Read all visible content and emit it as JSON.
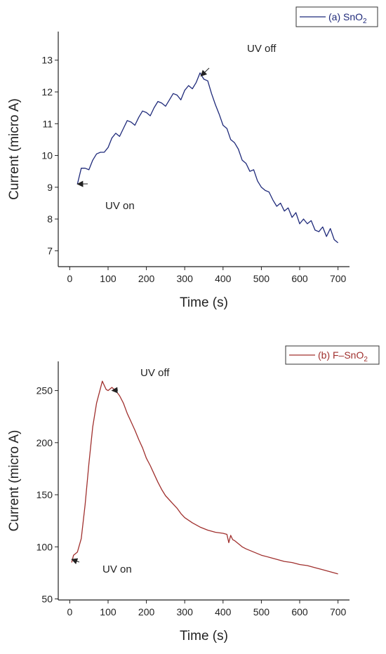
{
  "chart_data": [
    {
      "id": "a",
      "type": "line",
      "xlabel": "Time (s)",
      "ylabel": "Current (micro A)",
      "xlim": [
        -30,
        730
      ],
      "ylim": [
        6.5,
        13.9
      ],
      "xticks": [
        0,
        100,
        200,
        300,
        400,
        500,
        600,
        700
      ],
      "yticks": [
        7,
        8,
        9,
        10,
        11,
        12,
        13
      ],
      "grid": false,
      "legend": "top-right",
      "series": [
        {
          "name": "(a) SnO",
          "name_subscript": "2",
          "color": "#1f2a7a",
          "x": [
            20,
            30,
            40,
            50,
            60,
            70,
            80,
            90,
            100,
            110,
            120,
            130,
            140,
            150,
            160,
            170,
            180,
            190,
            200,
            210,
            220,
            230,
            240,
            250,
            260,
            270,
            280,
            290,
            300,
            310,
            320,
            330,
            340,
            350,
            360,
            370,
            380,
            390,
            400,
            410,
            420,
            430,
            440,
            450,
            460,
            470,
            480,
            490,
            500,
            510,
            520,
            530,
            540,
            550,
            560,
            570,
            580,
            590,
            600,
            610,
            620,
            630,
            640,
            650,
            660,
            670,
            680,
            690,
            700
          ],
          "y": [
            9.1,
            9.6,
            9.6,
            9.55,
            9.85,
            10.05,
            10.1,
            10.1,
            10.25,
            10.55,
            10.7,
            10.6,
            10.85,
            11.1,
            11.05,
            10.95,
            11.2,
            11.4,
            11.35,
            11.25,
            11.5,
            11.7,
            11.65,
            11.55,
            11.75,
            11.95,
            11.9,
            11.75,
            12.05,
            12.2,
            12.1,
            12.3,
            12.6,
            12.4,
            12.35,
            11.95,
            11.6,
            11.3,
            10.95,
            10.85,
            10.5,
            10.4,
            10.2,
            9.85,
            9.75,
            9.5,
            9.55,
            9.2,
            9.0,
            8.9,
            8.85,
            8.6,
            8.4,
            8.5,
            8.25,
            8.35,
            8.05,
            8.2,
            7.85,
            8.0,
            7.85,
            7.95,
            7.65,
            7.6,
            7.75,
            7.45,
            7.7,
            7.35,
            7.25
          ]
        }
      ],
      "annotations": [
        {
          "text": "UV off",
          "x": 342,
          "y": 12.5
        },
        {
          "text": "UV on",
          "x": 20,
          "y": 9.1
        }
      ]
    },
    {
      "id": "b",
      "type": "line",
      "xlabel": "Time (s)",
      "ylabel": "Current (micro A)",
      "xlim": [
        -30,
        730
      ],
      "ylim": [
        49,
        278
      ],
      "xticks": [
        0,
        100,
        200,
        300,
        400,
        500,
        600,
        700
      ],
      "yticks": [
        50,
        100,
        150,
        200,
        250
      ],
      "grid": false,
      "legend": "top-right",
      "series": [
        {
          "name": "(b) F–SnO",
          "name_subscript": "2",
          "color": "#a0302e",
          "x": [
            5,
            10,
            20,
            30,
            40,
            50,
            60,
            70,
            80,
            85,
            90,
            95,
            100,
            110,
            120,
            130,
            140,
            150,
            160,
            170,
            180,
            190,
            200,
            210,
            220,
            230,
            240,
            250,
            260,
            270,
            280,
            290,
            300,
            320,
            340,
            360,
            380,
            400,
            410,
            415,
            420,
            425,
            430,
            440,
            450,
            460,
            480,
            500,
            520,
            540,
            560,
            580,
            600,
            620,
            640,
            660,
            680,
            700
          ],
          "y": [
            85,
            92,
            95,
            108,
            140,
            180,
            215,
            238,
            252,
            259,
            255,
            251,
            250,
            253,
            250,
            245,
            238,
            228,
            220,
            212,
            203,
            195,
            185,
            178,
            170,
            162,
            155,
            149,
            145,
            141,
            137,
            132,
            128,
            123,
            119,
            116,
            114,
            113,
            112,
            104,
            111,
            107,
            106,
            103,
            100,
            98,
            95,
            92,
            90,
            88,
            86,
            85,
            83,
            82,
            80,
            78,
            76,
            74
          ]
        }
      ],
      "annotations": [
        {
          "text": "UV off",
          "x": 110,
          "y": 250
        },
        {
          "text": "UV on",
          "x": 5,
          "y": 88
        }
      ]
    }
  ]
}
